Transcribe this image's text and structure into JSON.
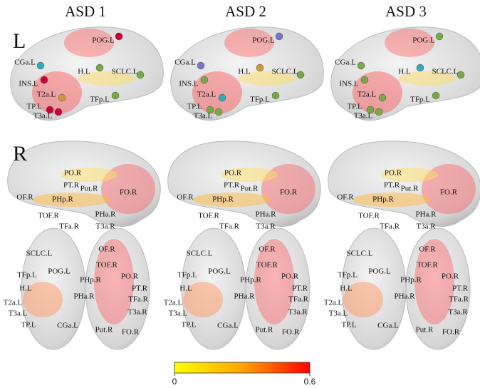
{
  "columns": [
    "ASD 1",
    "ASD 2",
    "ASD 3"
  ],
  "hemispheres": [
    "L",
    "R"
  ],
  "views": {
    "left_lateral": [
      "POG.L",
      "CGa.L",
      "H.L",
      "SCLC.L",
      "INS.L",
      "T2a.L",
      "TFp.L",
      "TP.L",
      "T3a.L"
    ],
    "right_lateral": [
      "PO.R",
      "PT.R",
      "Put.R",
      "FO.R",
      "OF.R",
      "PHp.R",
      "TOF.R",
      "PHa.R",
      "TFa.R",
      "T3a.R"
    ],
    "ventral": [
      "SCLC.L",
      "OF.R",
      "TFp.L",
      "POG.L",
      "TOF.R",
      "PHp.R",
      "PO.R",
      "H.L",
      "PHa.R",
      "PT.R",
      "TFa.R",
      "T2a.L",
      "T3a.R",
      "T3a.L",
      "TP.L",
      "CGa.L",
      "Put.R",
      "FO.R"
    ]
  },
  "colorbar": {
    "lim": [
      0,
      0.6
    ],
    "ticks": [
      0,
      0.6
    ],
    "colors": [
      "#ffff00",
      "#ffa500",
      "#ff0000"
    ]
  }
}
